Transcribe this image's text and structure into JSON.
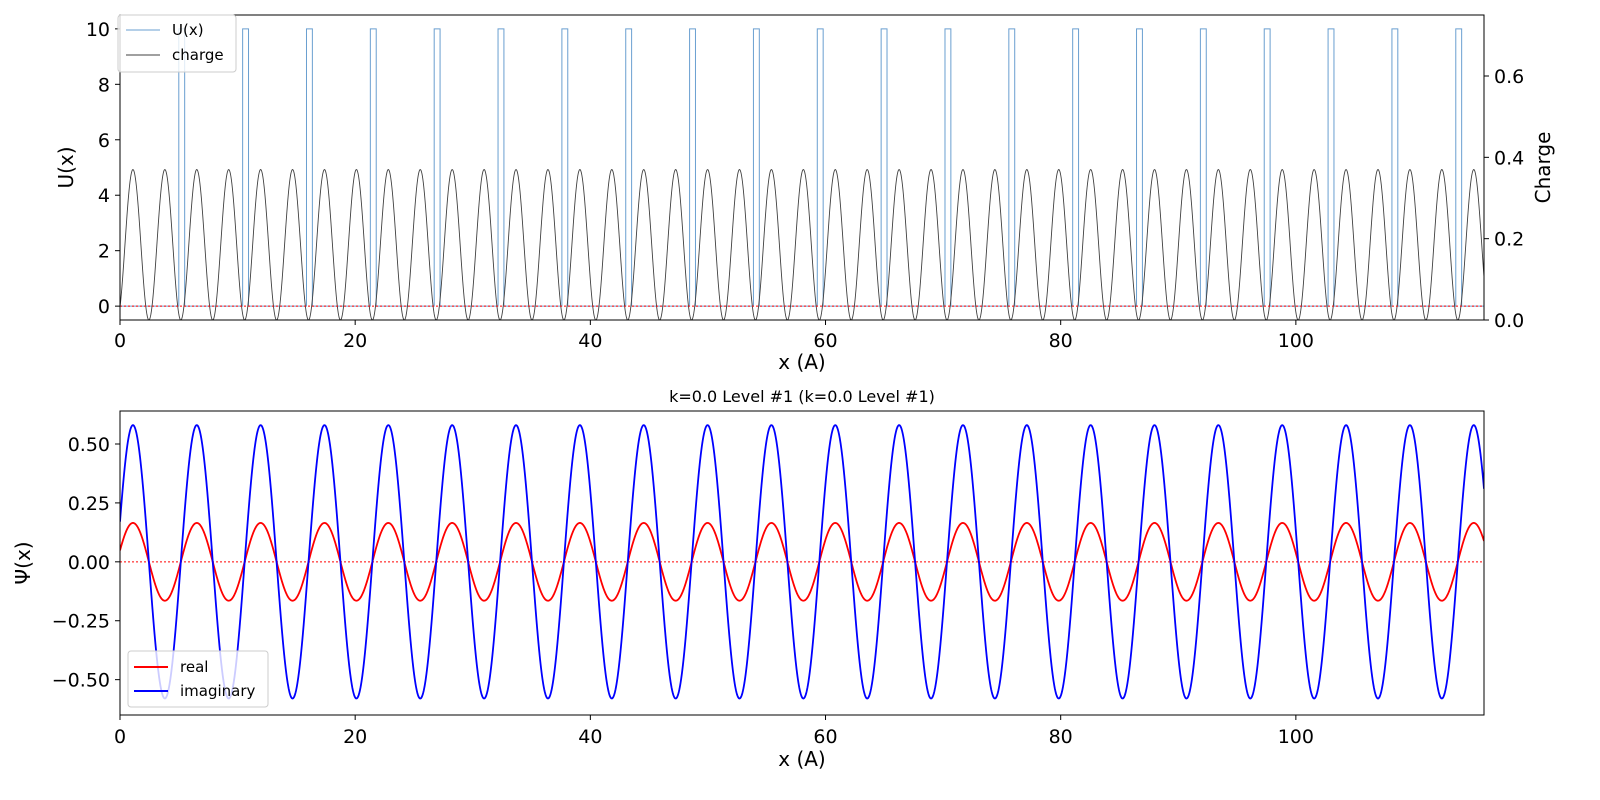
{
  "chart_data": [
    {
      "type": "line",
      "xlabel": "x (A)",
      "ylabel": "U(x)",
      "y2label": "Charge",
      "xlim": [
        0,
        116
      ],
      "ylim": [
        -0.5,
        10.5
      ],
      "y2lim": [
        0,
        0.75
      ],
      "xticks": [
        0,
        20,
        40,
        60,
        80,
        100
      ],
      "yticks": [
        0,
        2,
        4,
        6,
        8,
        10
      ],
      "y2ticks": [
        0.0,
        0.2,
        0.4,
        0.6
      ],
      "xtick_labels": [
        "0",
        "20",
        "40",
        "60",
        "80",
        "100"
      ],
      "ytick_labels": [
        "0",
        "2",
        "4",
        "6",
        "8",
        "10"
      ],
      "y2tick_labels": [
        "0.0",
        "0.2",
        "0.4",
        "0.6"
      ],
      "legend_position": "top-left",
      "series": [
        {
          "name": "U(x)",
          "axis": "left",
          "color": "#6a9fd0",
          "shape": "periodic rectangular barriers",
          "period": 5.43,
          "first_barrier_start": 5.0,
          "barrier_width": 0.5,
          "low": 0,
          "high": 10
        },
        {
          "name": "charge",
          "axis": "right",
          "color": "#404040",
          "shape": "periodic peaks",
          "period": 2.715,
          "first_peak_at": 1.1,
          "min": 0.0,
          "max": 0.37
        }
      ],
      "reference_line": {
        "y": 0,
        "color": "#ff0000",
        "style": "dotted"
      }
    },
    {
      "type": "line",
      "title": "k=0.0 Level #1 (k=0.0 Level #1)",
      "xlabel": "x (A)",
      "ylabel": "Ψ(x)",
      "xlim": [
        0,
        116
      ],
      "ylim": [
        -0.65,
        0.64
      ],
      "xticks": [
        0,
        20,
        40,
        60,
        80,
        100
      ],
      "yticks": [
        -0.5,
        -0.25,
        0.0,
        0.25,
        0.5
      ],
      "xtick_labels": [
        "0",
        "20",
        "40",
        "60",
        "80",
        "100"
      ],
      "ytick_labels": [
        "−0.50",
        "−0.25",
        "0.00",
        "0.25",
        "0.50"
      ],
      "legend_position": "bottom-left",
      "series": [
        {
          "name": "real",
          "color": "#ff0000",
          "shape": "sinusoid",
          "period": 5.43,
          "amplitude": 0.165,
          "first_peak_at": 1.1
        },
        {
          "name": "imaginary",
          "color": "#0000ff",
          "shape": "sinusoid",
          "period": 5.43,
          "amplitude": 0.58,
          "first_peak_at": 1.1
        }
      ],
      "reference_line": {
        "y": 0,
        "color": "#ff0000",
        "style": "dotted"
      }
    }
  ]
}
